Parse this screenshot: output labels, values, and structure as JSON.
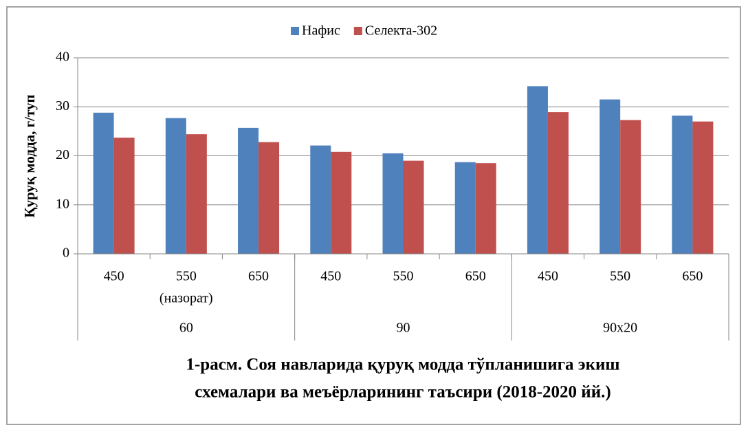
{
  "chart_data": {
    "type": "bar",
    "title": [
      "1-расм. Соя навларида қуруқ модда тўпланишига  экиш",
      "схемалари ва меъёрларининг таъсири (2018-2020 йй.)"
    ],
    "y_label": "Қуруқ модда, г/туп",
    "categories": [
      "450",
      "550",
      "650",
      "450",
      "550",
      "650",
      "450",
      "550",
      "650"
    ],
    "category_notes": [
      null,
      "(назорат)",
      null,
      null,
      null,
      null,
      null,
      null,
      null
    ],
    "groups": [
      "60",
      "90",
      "90x20"
    ],
    "series": [
      {
        "name": "Нафис",
        "color": "#4f81bd",
        "values": [
          28.8,
          27.7,
          25.7,
          22.1,
          20.5,
          18.7,
          34.2,
          31.5,
          28.2
        ]
      },
      {
        "name": "Селекта-302",
        "color": "#c0504d",
        "values": [
          23.7,
          24.4,
          22.8,
          20.8,
          19.0,
          18.5,
          28.9,
          27.3,
          27.0
        ]
      }
    ],
    "ylim": [
      0,
      40
    ],
    "yticks": [
      0,
      10,
      20,
      30,
      40
    ],
    "grid": true,
    "legend": "top"
  }
}
